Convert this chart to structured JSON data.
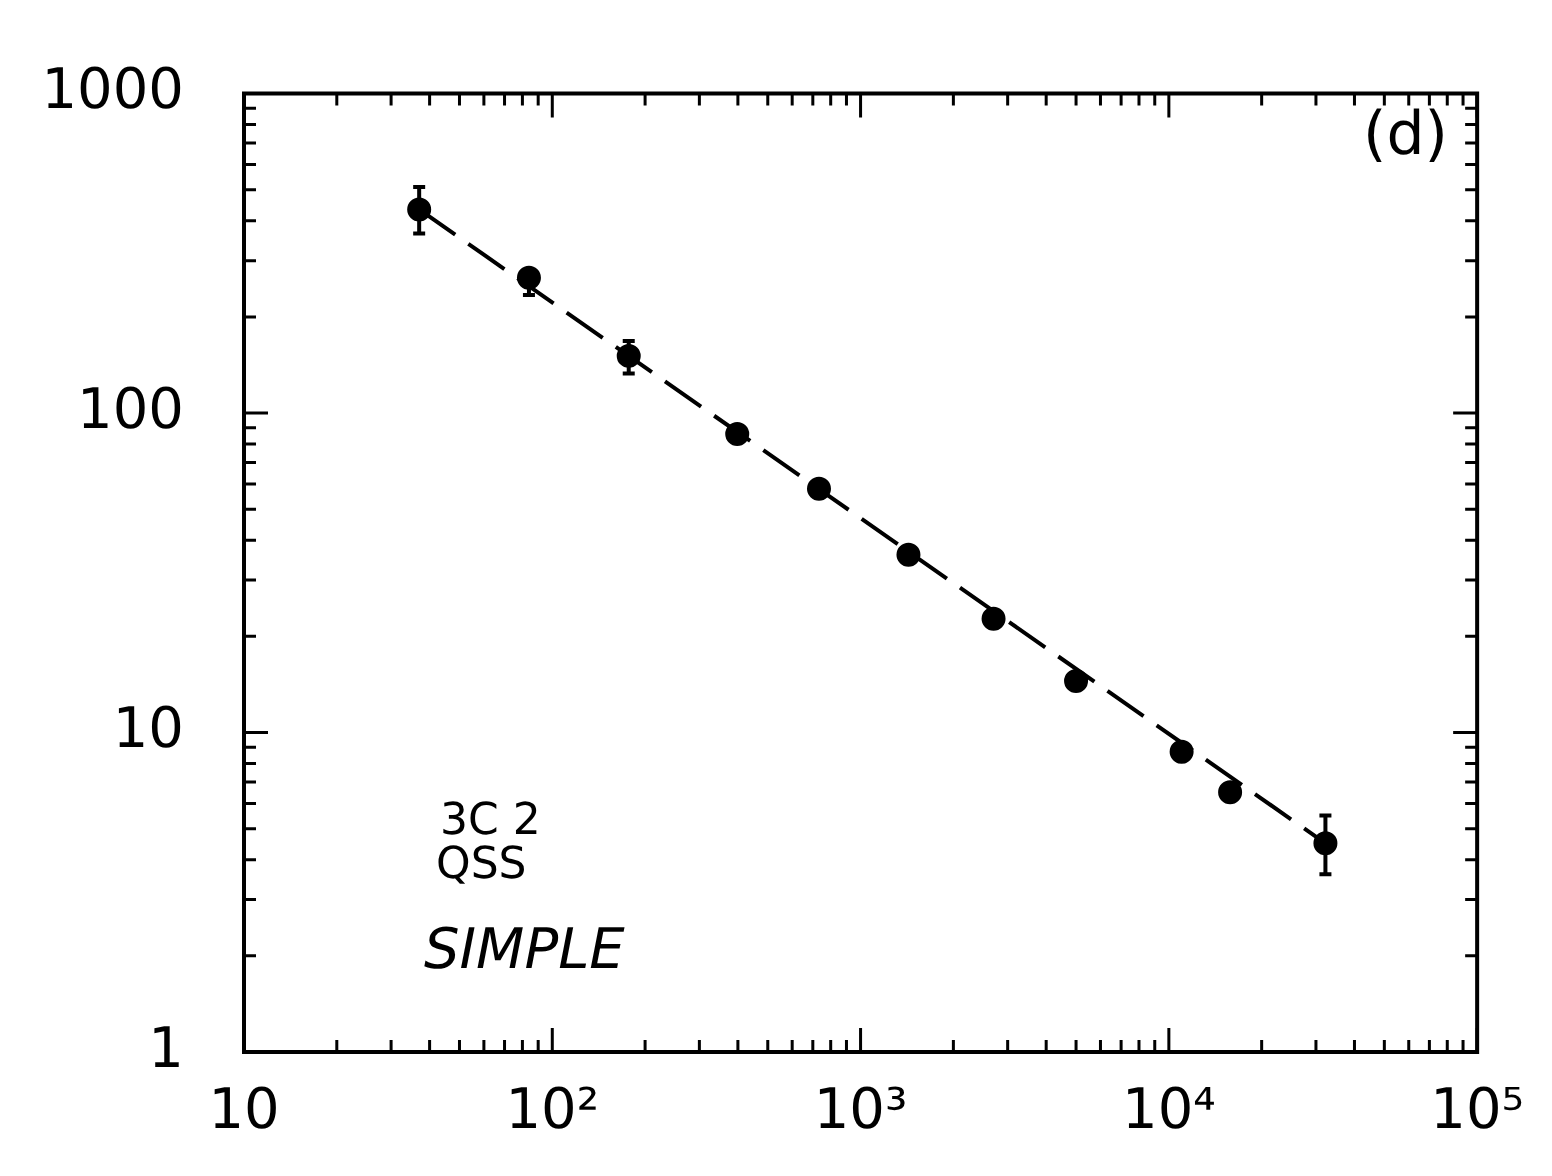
{
  "chart_data": {
    "type": "scatter",
    "annotations": [
      "(d)",
      "3C 2",
      "QSS",
      "SIMPLE"
    ],
    "log": "xy",
    "grid": false,
    "legend": false,
    "marker": "circle",
    "xlim": [
      10,
      100000
    ],
    "ylim": [
      1,
      1000
    ],
    "xticks": [
      10,
      {
        "value": 20,
        "label": null
      },
      {
        "value": 30,
        "label": null
      },
      {
        "value": 40,
        "label": null
      },
      {
        "value": 50,
        "label": null
      },
      {
        "value": 60,
        "label": null
      },
      {
        "value": 70,
        "label": null
      },
      {
        "value": 80,
        "label": null
      },
      {
        "value": 90,
        "label": null
      },
      {
        "value": 100,
        "label": "10²"
      },
      {
        "value": 200,
        "label": null
      },
      {
        "value": 300,
        "label": null
      },
      {
        "value": 400,
        "label": null
      },
      {
        "value": 500,
        "label": null
      },
      {
        "value": 600,
        "label": null
      },
      {
        "value": 700,
        "label": null
      },
      {
        "value": 800,
        "label": null
      },
      {
        "value": 900,
        "label": null
      },
      {
        "value": 1000,
        "label": "10³"
      },
      {
        "value": 2000,
        "label": null
      },
      {
        "value": 3000,
        "label": null
      },
      {
        "value": 4000,
        "label": null
      },
      {
        "value": 5000,
        "label": null
      },
      {
        "value": 6000,
        "label": null
      },
      {
        "value": 7000,
        "label": null
      },
      {
        "value": 8000,
        "label": null
      },
      {
        "value": 9000,
        "label": null
      },
      {
        "value": 10000,
        "label": "10⁴"
      },
      {
        "value": 20000,
        "label": null
      },
      {
        "value": 30000,
        "label": null
      },
      {
        "value": 40000,
        "label": null
      },
      {
        "value": 50000,
        "label": null
      },
      {
        "value": 60000,
        "label": null
      },
      {
        "value": 70000,
        "label": null
      },
      {
        "value": 80000,
        "label": null
      },
      {
        "value": 90000,
        "label": null
      },
      {
        "value": 100000,
        "label": "10⁵"
      }
    ],
    "yticks": [
      1,
      {
        "value": 2,
        "label": null
      },
      {
        "value": 3,
        "label": null
      },
      {
        "value": 4,
        "label": null
      },
      {
        "value": 5,
        "label": null
      },
      {
        "value": 6,
        "label": null
      },
      {
        "value": 7,
        "label": null
      },
      {
        "value": 8,
        "label": null
      },
      {
        "value": 9,
        "label": null
      },
      10,
      {
        "value": 20,
        "label": null
      },
      {
        "value": 30,
        "label": null
      },
      {
        "value": 40,
        "label": null
      },
      {
        "value": 50,
        "label": null
      },
      {
        "value": 60,
        "label": null
      },
      {
        "value": 70,
        "label": null
      },
      {
        "value": 80,
        "label": null
      },
      {
        "value": 90,
        "label": null
      },
      100,
      {
        "value": 200,
        "label": null
      },
      {
        "value": 300,
        "label": null
      },
      {
        "value": 400,
        "label": null
      },
      {
        "value": 500,
        "label": null
      },
      {
        "value": 600,
        "label": null
      },
      {
        "value": 700,
        "label": null
      },
      {
        "value": 800,
        "label": null
      },
      {
        "value": 900,
        "label": null
      },
      1000
    ],
    "series": [
      {
        "color": "#000000",
        "x": [
          37,
          84,
          177,
          398,
          733,
          1430,
          2700,
          5000,
          11000,
          15800,
          32200
        ],
        "values": [
          434,
          265,
          151,
          86,
          58,
          36,
          22.7,
          14.5,
          8.7,
          6.5,
          4.5
        ],
        "errors": [
          [
            365,
            510
          ],
          [
            234,
            279
          ],
          [
            133,
            168
          ],
          null,
          null,
          null,
          null,
          null,
          null,
          null,
          [
            3.6,
            5.5
          ]
        ]
      },
      {
        "type": "line",
        "color": "#000000",
        "line_style": "dashed",
        "marker": "none",
        "x": [
          37,
          32200
        ],
        "values": [
          434,
          4.5
        ]
      }
    ]
  }
}
